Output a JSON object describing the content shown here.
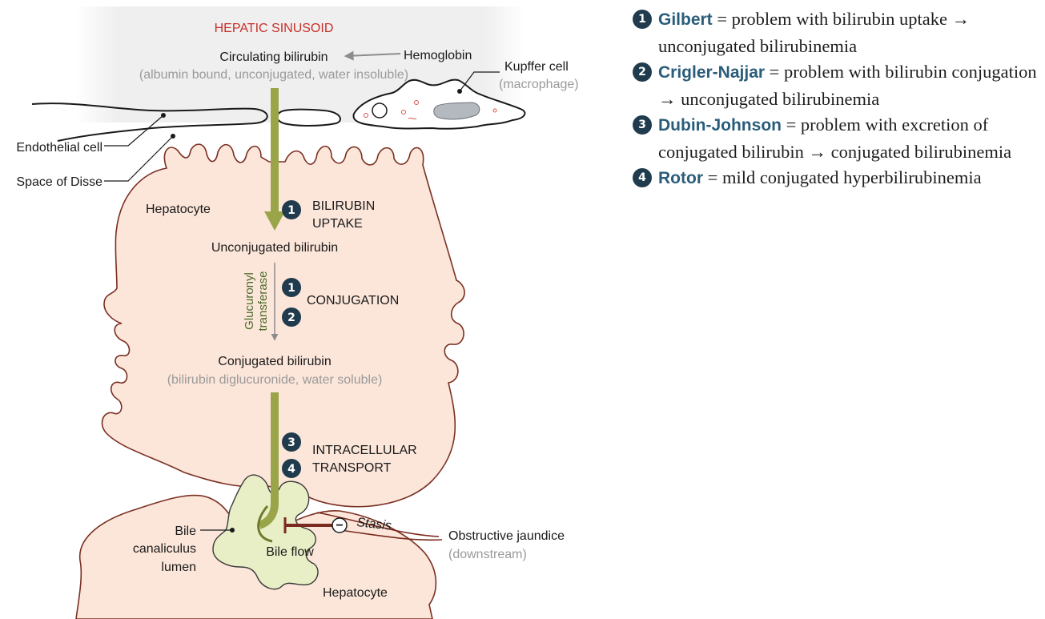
{
  "diagram": {
    "sinusoid_title": "HEPATIC SINUSOID",
    "circulating_bilirubin": "Circulating bilirubin",
    "circulating_note": "(albumin bound, unconjugated, water insoluble)",
    "hemoglobin": "Hemoglobin",
    "kupffer_cell": "Kupffer cell",
    "kupffer_note": "(macrophage)",
    "endothelial_cell": "Endothelial cell",
    "space_of_disse": "Space of Disse",
    "hepatocyte_top": "Hepatocyte",
    "uptake_line1": "BILIRUBIN",
    "uptake_line2": "UPTAKE",
    "unconjugated_bilirubin": "Unconjugated bilirubin",
    "enzyme_line1": "Glucuronyl",
    "enzyme_line2": "transferase",
    "conjugation": "CONJUGATION",
    "conjugated_bilirubin": "Conjugated bilirubin",
    "conjugated_note": "(bilirubin diglucuronide, water soluble)",
    "transport_line1": "INTRACELLULAR",
    "transport_line2": "TRANSPORT",
    "bile_line1": "Bile",
    "bile_line2": "canaliculus",
    "bile_line3": "lumen",
    "bile_flow": "Bile flow",
    "stasis": "Stasis",
    "obstructive_jaundice": "Obstructive jaundice",
    "downstream": "(downstream)",
    "hepatocyte_bottom": "Hepatocyte",
    "badges": [
      "1",
      "1",
      "2",
      "3",
      "4"
    ],
    "inhibit_symbol": "−"
  },
  "legend": [
    {
      "number": "1",
      "name": "Gilbert",
      "text": "= problem with bilirubin uptake → unconjugated bilirubinemia"
    },
    {
      "number": "2",
      "name": "Crigler-Najjar",
      "text": "= problem with bilirubin conjugation → unconjugated bilirubinemia"
    },
    {
      "number": "3",
      "name": "Dubin-Johnson",
      "text": "= problem with excretion of conjugated bilirubin → conjugated bilirubinemia"
    },
    {
      "number": "4",
      "name": "Rotor",
      "text": "= mild conjugated hyperbilirubinemia"
    }
  ],
  "colors": {
    "sinusoid_bg": "#efefef",
    "hepatocyte_fill": "#fce6da",
    "canaliculus_fill": "#e8efc6",
    "arrow_green": "#9aa54a",
    "badge": "#1f3b4d",
    "legend_name": "#2a5d7a",
    "obstruction": "#7a2a1e"
  }
}
